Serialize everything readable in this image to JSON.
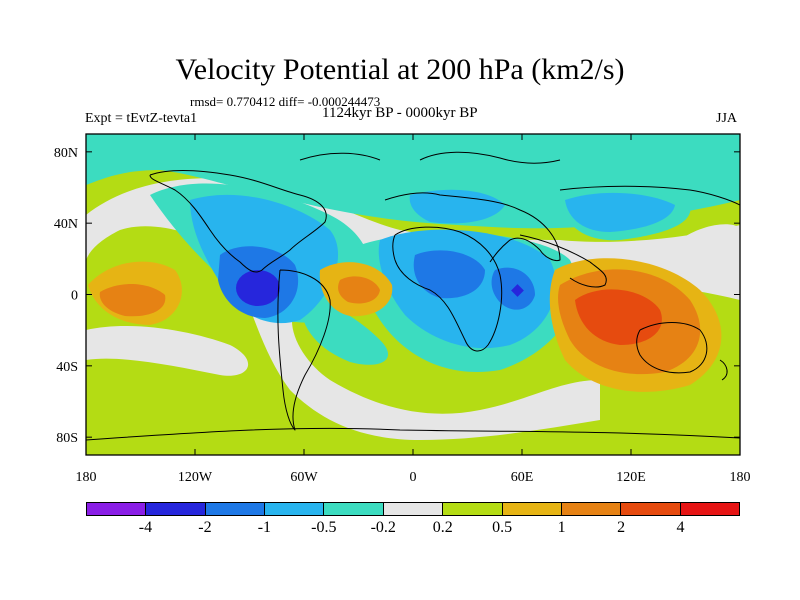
{
  "title": "Velocity Potential at 200 hPa (km2/s)",
  "stats": "rmsd= 0.770412 diff= -0.000244473",
  "left_label": "Expt = tEvtZ-tevta1",
  "center_label": "1124kyr BP - 0000kyr BP",
  "right_label": "JJA",
  "map": {
    "lat_ticks": [
      "80N",
      "40N",
      "0",
      "40S",
      "80S"
    ],
    "lon_ticks": [
      "180",
      "120W",
      "60W",
      "0",
      "60E",
      "120E",
      "180"
    ],
    "lat_values": [
      80,
      40,
      0,
      -40,
      -80
    ],
    "lon_values": [
      -180,
      -120,
      -60,
      0,
      60,
      120,
      180
    ]
  },
  "colorbar": {
    "colors": [
      "#8a1ee6",
      "#2626dc",
      "#1e78e6",
      "#28b4ee",
      "#3cdcc0",
      "#e6e6e6",
      "#b4dc14",
      "#e6b414",
      "#e68214",
      "#e64b0f",
      "#e61414"
    ],
    "labels": [
      "-4",
      "-2",
      "-1",
      "-0.5",
      "-0.2",
      "0.2",
      "0.5",
      "1",
      "2",
      "4"
    ]
  }
}
